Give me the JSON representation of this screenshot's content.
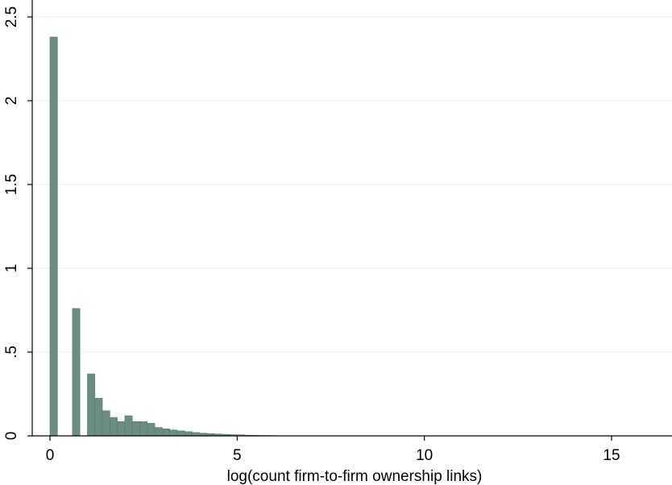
{
  "chart_data": {
    "type": "bar",
    "title": "",
    "xlabel": "log(count firm-to-firm ownership links)",
    "ylabel": "",
    "xlim": [
      0,
      15
    ],
    "ylim": [
      0,
      2.5
    ],
    "grid": true,
    "legend": "none",
    "x_ticks": [
      {
        "value": 0,
        "label": "0"
      },
      {
        "value": 5,
        "label": "5"
      },
      {
        "value": 10,
        "label": "10"
      },
      {
        "value": 15,
        "label": "15"
      }
    ],
    "y_ticks": [
      {
        "value": 0,
        "label": "0"
      },
      {
        "value": 0.5,
        "label": ".5"
      },
      {
        "value": 1,
        "label": "1"
      },
      {
        "value": 1.5,
        "label": "1.5"
      },
      {
        "value": 2,
        "label": "2"
      },
      {
        "value": 2.5,
        "label": "2.5"
      }
    ],
    "bin_width": 0.2,
    "bins_x_start": [
      0.0,
      0.6,
      1.0,
      1.2,
      1.4,
      1.6,
      1.8,
      2.0,
      2.2,
      2.4,
      2.6,
      2.8,
      3.0,
      3.2,
      3.4,
      3.6,
      3.8,
      4.0,
      4.2,
      4.4,
      4.6,
      4.8,
      5.0,
      5.2,
      5.4,
      5.6,
      5.8,
      6.0
    ],
    "values": [
      2.38,
      0.76,
      0.37,
      0.225,
      0.15,
      0.11,
      0.085,
      0.12,
      0.085,
      0.085,
      0.075,
      0.05,
      0.042,
      0.035,
      0.03,
      0.025,
      0.02,
      0.016,
      0.013,
      0.011,
      0.009,
      0.007,
      0.006,
      0.004,
      0.003,
      0.002,
      0.0015,
      0.001
    ],
    "colors": {
      "bar_fill": "#6b8e80",
      "bar_stroke": "#5a7a6d",
      "grid": "#e8eef2",
      "axis": "#000000"
    }
  }
}
